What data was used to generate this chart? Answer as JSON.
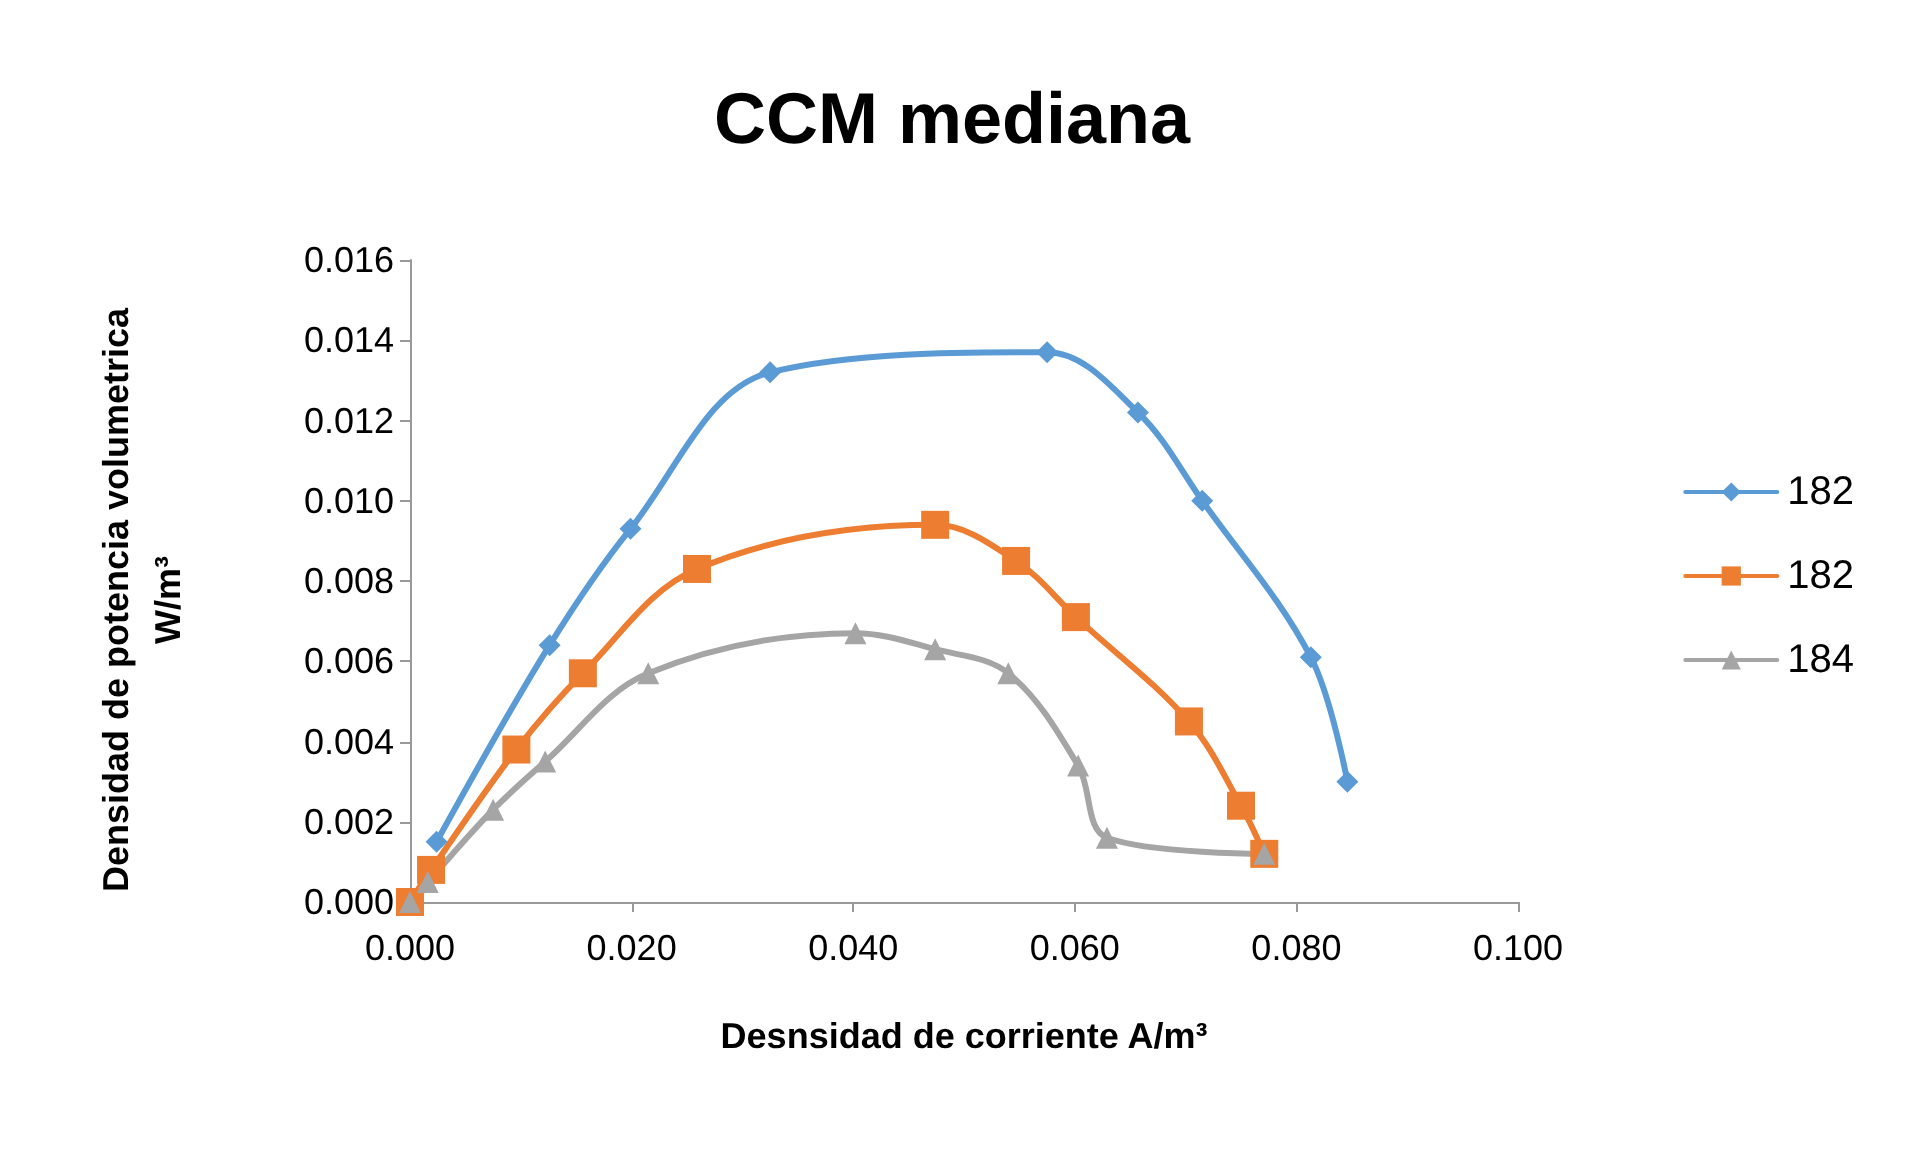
{
  "chart_data": {
    "type": "line",
    "title": "CCM mediana",
    "xlabel": "Desnsidad de corriente A/m³",
    "ylabel": "Densidad de potencia volumetrica\nW/m³",
    "xlim": [
      0,
      0.1
    ],
    "xticks": [
      {
        "value": 0,
        "label": "0.000"
      },
      {
        "value": 0.02,
        "label": "0.020"
      },
      {
        "value": 0.04,
        "label": "0.040"
      },
      {
        "value": 0.06,
        "label": "0.060"
      },
      {
        "value": 0.08,
        "label": "0.080"
      },
      {
        "value": 0.1,
        "label": "0.100"
      }
    ],
    "ylim": [
      0,
      0.016
    ],
    "yticks": [
      {
        "value": 0,
        "label": "0.000"
      },
      {
        "value": 0.002,
        "label": "0.002"
      },
      {
        "value": 0.004,
        "label": "0.004"
      },
      {
        "value": 0.006,
        "label": "0.006"
      },
      {
        "value": 0.008,
        "label": "0.008"
      },
      {
        "value": 0.01,
        "label": "0.010"
      },
      {
        "value": 0.012,
        "label": "0.012"
      },
      {
        "value": 0.014,
        "label": "0.014"
      },
      {
        "value": 0.016,
        "label": "0.016"
      }
    ],
    "grid": false,
    "legend": "right",
    "line_style": "solid",
    "series": [
      {
        "name": "182",
        "color": "#5b9bd5",
        "marker": "diamond",
        "x": [
          0.0024,
          0.0126,
          0.0199,
          0.0325,
          0.0575,
          0.0657,
          0.0715,
          0.0813,
          0.0846
        ],
        "values": [
          0.0015,
          0.0064,
          0.0093,
          0.0132,
          0.0137,
          0.0122,
          0.01,
          0.0061,
          0.003
        ]
      },
      {
        "name": "182",
        "color": "#ed7d31",
        "marker": "square",
        "x": [
          0,
          0.0019,
          0.0096,
          0.0156,
          0.0259,
          0.0474,
          0.0547,
          0.0601,
          0.0703,
          0.075,
          0.0771
        ],
        "values": [
          0,
          0.0008,
          0.0038,
          0.0057,
          0.0083,
          0.0094,
          0.0085,
          0.0071,
          0.0045,
          0.0024,
          0.0012
        ]
      },
      {
        "name": "184",
        "color": "#a5a5a5",
        "marker": "triangle",
        "x": [
          0,
          0.0016,
          0.0075,
          0.0122,
          0.0215,
          0.0402,
          0.0474,
          0.054,
          0.0603,
          0.0629,
          0.0771
        ],
        "values": [
          0,
          0.0005,
          0.0023,
          0.0035,
          0.0057,
          0.0067,
          0.0063,
          0.0057,
          0.0034,
          0.0016,
          0.0012
        ]
      }
    ]
  }
}
